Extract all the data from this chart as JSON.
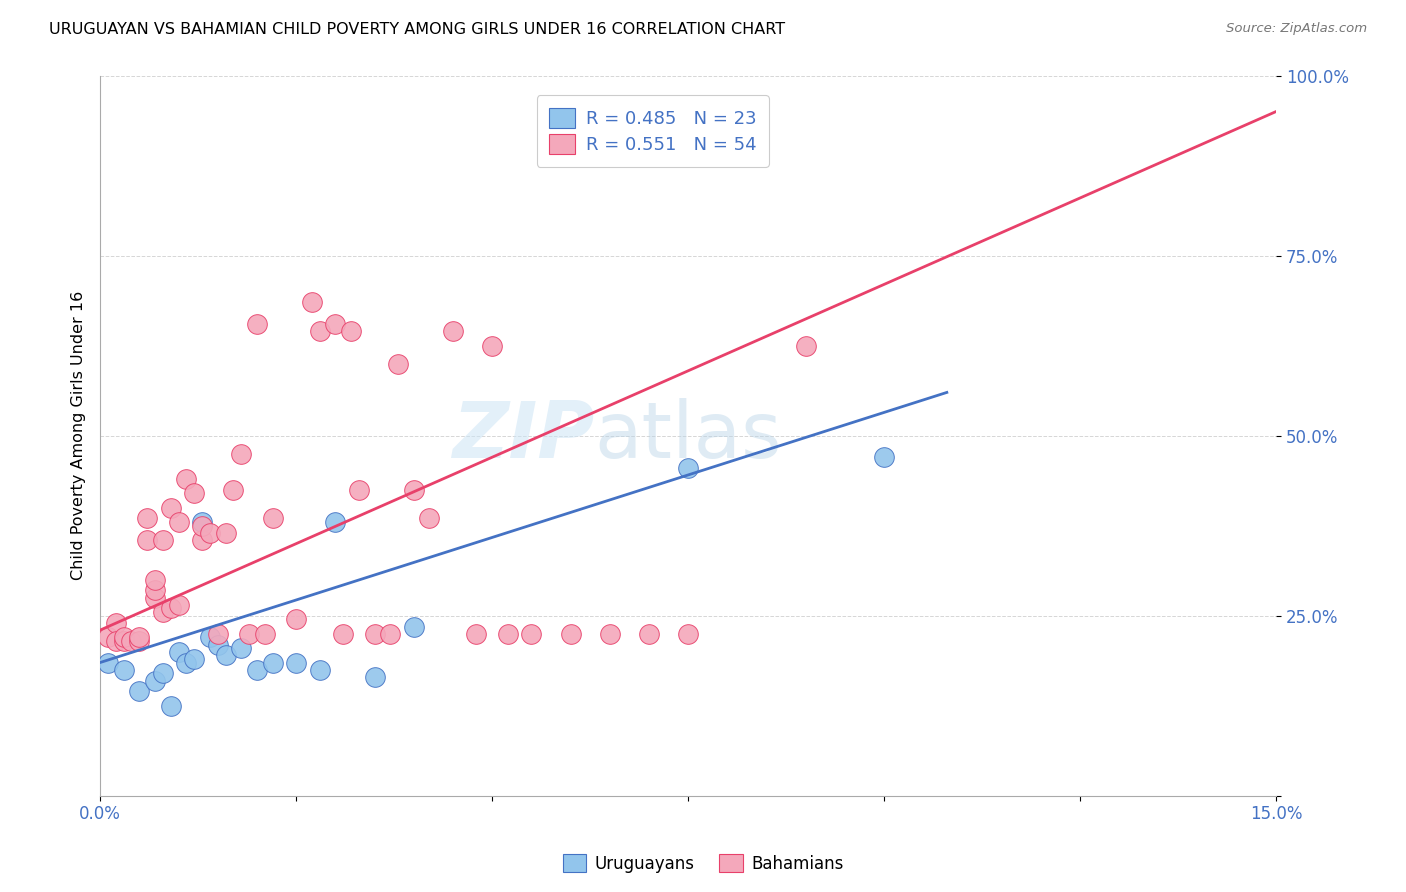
{
  "title": "URUGUAYAN VS BAHAMIAN CHILD POVERTY AMONG GIRLS UNDER 16 CORRELATION CHART",
  "source": "Source: ZipAtlas.com",
  "ylabel": "Child Poverty Among Girls Under 16",
  "xlim": [
    0.0,
    0.15
  ],
  "ylim": [
    0.0,
    1.0
  ],
  "xticks": [
    0.0,
    0.025,
    0.05,
    0.075,
    0.1,
    0.125,
    0.15
  ],
  "xticklabels": [
    "0.0%",
    "",
    "",
    "",
    "",
    "",
    "15.0%"
  ],
  "yticks": [
    0.0,
    0.25,
    0.5,
    0.75,
    1.0
  ],
  "yticklabels": [
    "",
    "25.0%",
    "50.0%",
    "75.0%",
    "100.0%"
  ],
  "watermark_zip": "ZIP",
  "watermark_atlas": "atlas",
  "legend_line1": "R = 0.485   N = 23",
  "legend_line2": "R = 0.551   N = 54",
  "uruguayan_color": "#92C5EC",
  "bahamian_color": "#F4A8BB",
  "trend_uruguayan_color": "#4472C4",
  "trend_bahamian_color": "#E8406A",
  "axis_label_color": "#4472C4",
  "uruguayan_x": [
    0.001,
    0.003,
    0.005,
    0.007,
    0.008,
    0.009,
    0.01,
    0.011,
    0.012,
    0.013,
    0.014,
    0.015,
    0.016,
    0.018,
    0.02,
    0.022,
    0.025,
    0.028,
    0.03,
    0.035,
    0.04,
    0.075,
    0.1
  ],
  "uruguayan_y": [
    0.185,
    0.175,
    0.145,
    0.16,
    0.17,
    0.125,
    0.2,
    0.185,
    0.19,
    0.38,
    0.22,
    0.21,
    0.195,
    0.205,
    0.175,
    0.185,
    0.185,
    0.175,
    0.38,
    0.165,
    0.235,
    0.455,
    0.47
  ],
  "bahamian_x": [
    0.001,
    0.002,
    0.002,
    0.003,
    0.003,
    0.004,
    0.005,
    0.005,
    0.006,
    0.006,
    0.007,
    0.007,
    0.007,
    0.008,
    0.008,
    0.009,
    0.009,
    0.01,
    0.01,
    0.011,
    0.012,
    0.013,
    0.013,
    0.014,
    0.015,
    0.016,
    0.017,
    0.018,
    0.019,
    0.02,
    0.021,
    0.022,
    0.025,
    0.027,
    0.028,
    0.03,
    0.031,
    0.032,
    0.033,
    0.035,
    0.037,
    0.038,
    0.04,
    0.042,
    0.045,
    0.048,
    0.05,
    0.052,
    0.055,
    0.06,
    0.065,
    0.07,
    0.075,
    0.09
  ],
  "bahamian_y": [
    0.22,
    0.24,
    0.215,
    0.215,
    0.22,
    0.215,
    0.215,
    0.22,
    0.355,
    0.385,
    0.275,
    0.285,
    0.3,
    0.255,
    0.355,
    0.26,
    0.4,
    0.265,
    0.38,
    0.44,
    0.42,
    0.355,
    0.375,
    0.365,
    0.225,
    0.365,
    0.425,
    0.475,
    0.225,
    0.655,
    0.225,
    0.385,
    0.245,
    0.685,
    0.645,
    0.655,
    0.225,
    0.645,
    0.425,
    0.225,
    0.225,
    0.6,
    0.425,
    0.385,
    0.645,
    0.225,
    0.625,
    0.225,
    0.225,
    0.225,
    0.225,
    0.225,
    0.225,
    0.625
  ],
  "trend_uru_x0": 0.0,
  "trend_uru_x1": 0.108,
  "trend_uru_y0": 0.185,
  "trend_uru_y1": 0.56,
  "trend_bah_x0": 0.0,
  "trend_bah_x1": 0.15,
  "trend_bah_y0": 0.23,
  "trend_bah_y1": 0.95
}
